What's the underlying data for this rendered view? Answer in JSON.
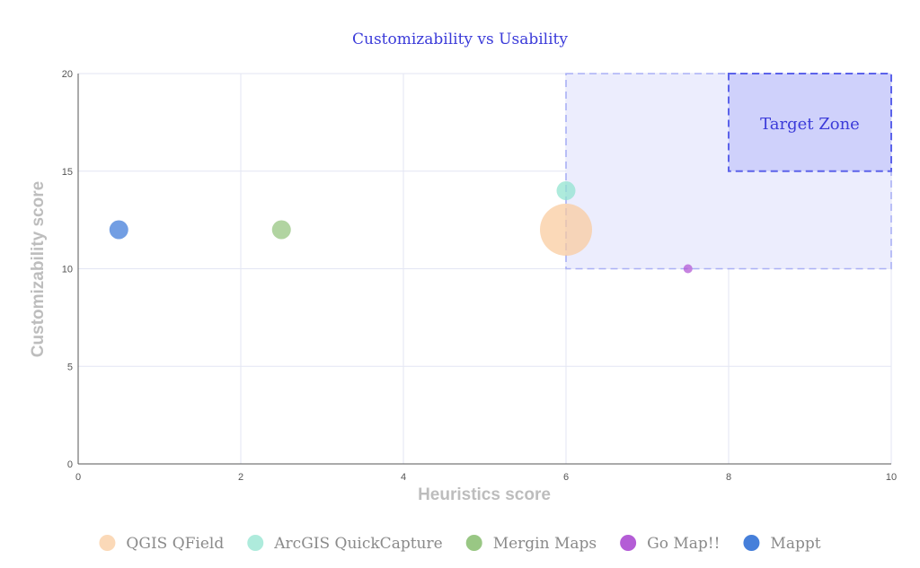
{
  "chart_data": {
    "type": "scatter",
    "title": "Customizability vs Usability",
    "xlabel": "Heuristics score",
    "ylabel": "Customizability score",
    "xlim": [
      0,
      10
    ],
    "ylim": [
      0,
      20
    ],
    "x_ticks": [
      "0",
      "2",
      "4",
      "6",
      "8",
      "10"
    ],
    "y_ticks": [
      "0",
      "5",
      "10",
      "15",
      "20"
    ],
    "grid": true,
    "legend_position": "bottom",
    "series": [
      {
        "name": "QGIS QField",
        "color": "#f9cb9c",
        "points": [
          {
            "x": 6,
            "y": 12,
            "size": "large"
          }
        ]
      },
      {
        "name": "ArcGIS QuickCapture",
        "color": "#8fe3cf",
        "points": [
          {
            "x": 6,
            "y": 14,
            "size": "small"
          }
        ]
      },
      {
        "name": "Mergin Maps",
        "color": "#93c47d",
        "points": [
          {
            "x": 2.5,
            "y": 12,
            "size": "small"
          }
        ]
      },
      {
        "name": "Go Map!!",
        "color": "#b054d4",
        "points": [
          {
            "x": 7.5,
            "y": 10,
            "size": "tiny"
          }
        ]
      },
      {
        "name": "Mappt",
        "color": "#3c78d8",
        "points": [
          {
            "x": 0.5,
            "y": 12,
            "size": "small"
          }
        ]
      }
    ],
    "regions": [
      {
        "x_range": [
          6,
          10
        ],
        "y_range": [
          10,
          20
        ],
        "label": ""
      },
      {
        "x_range": [
          8,
          10
        ],
        "y_range": [
          15,
          20
        ],
        "label": "Target Zone"
      }
    ]
  },
  "colors": {
    "title": "#3b3bd9",
    "zone_outer_fill": "#ecedfd",
    "zone_outer_stroke": "#aab0f5",
    "zone_inner_fill": "#cfd1fb",
    "zone_inner_stroke": "#5c63ea",
    "zone_label": "#3b3bd9",
    "grid": "#e3e6f3",
    "axis": "#555555"
  }
}
